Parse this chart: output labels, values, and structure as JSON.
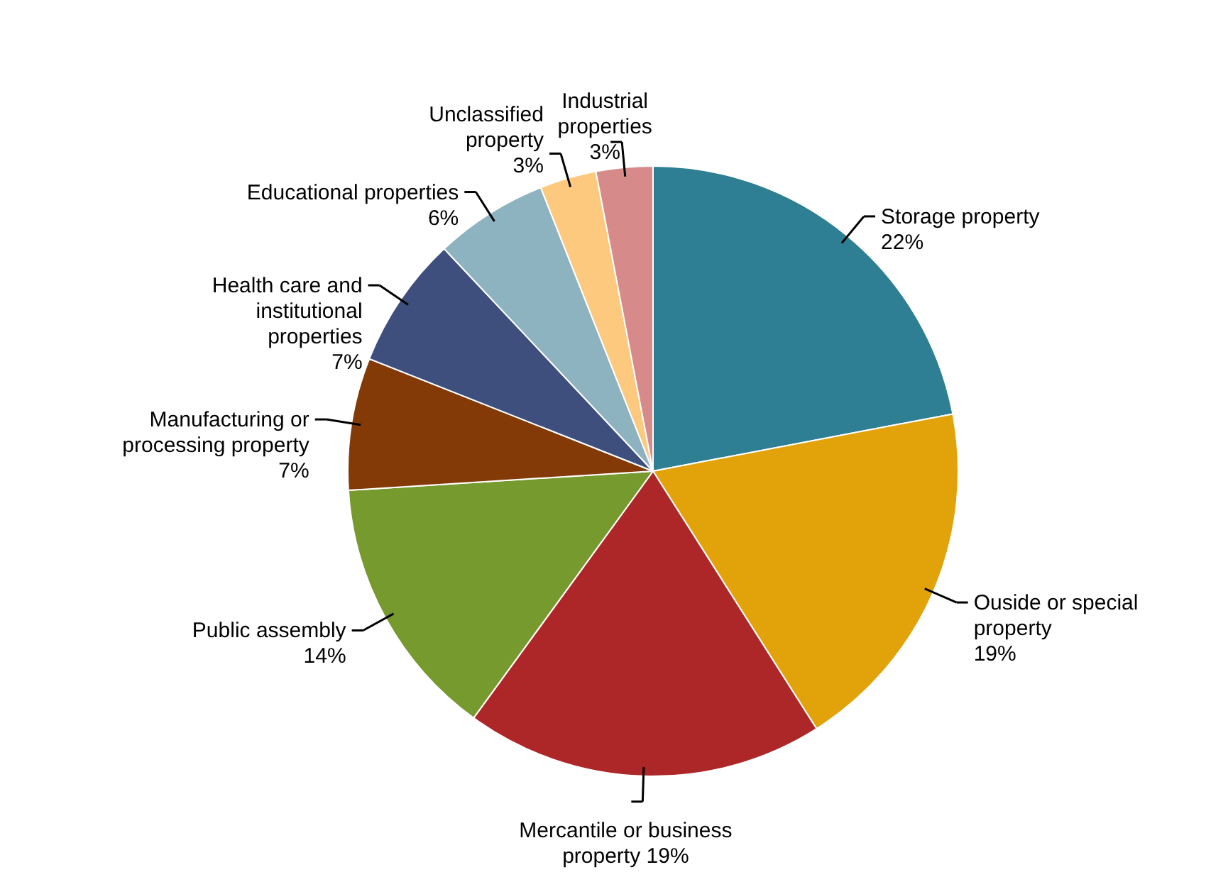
{
  "chart_data": {
    "type": "pie",
    "categories": [
      "Storage property",
      "Ouside or special property",
      "Mercantile or business property",
      "Public assembly",
      "Manufacturing or processing property",
      "Health care and institutional properties",
      "Educational properties",
      "Unclassified property",
      "Industrial properties"
    ],
    "values": [
      22,
      19,
      19,
      14,
      7,
      7,
      6,
      3,
      3
    ],
    "colors": [
      "#2e7f93",
      "#e2a20a",
      "#ad2729",
      "#769a2e",
      "#843a07",
      "#3e4f7e",
      "#8db2c0",
      "#fdc97f",
      "#d68a8a"
    ],
    "value_labels": [
      "22%",
      "19%",
      "19%",
      "14%",
      "7%",
      "7%",
      "6%",
      "3%",
      "3%"
    ]
  }
}
